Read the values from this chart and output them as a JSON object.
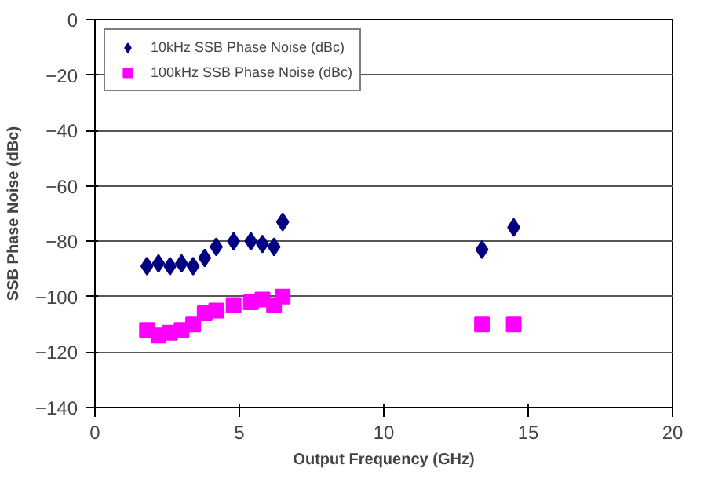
{
  "chart_data": {
    "type": "scatter",
    "xlabel": "Output Frequency (GHz)",
    "ylabel": "SSB Phase Noise (dBc)",
    "xlim": [
      0,
      20
    ],
    "xticks": [
      0,
      5,
      10,
      15,
      20
    ],
    "ylim": [
      -140,
      0
    ],
    "yticks": [
      -140,
      -120,
      -100,
      -80,
      -60,
      -40,
      -20,
      0
    ],
    "grid": "y",
    "legend": "top left",
    "series": [
      {
        "name": "10kHz SSB Phase Noise (dBc)",
        "color": "#000080",
        "marker": "diamond",
        "x": [
          1.8,
          2.2,
          2.6,
          3.0,
          3.4,
          3.8,
          4.2,
          4.8,
          5.4,
          5.8,
          6.2,
          6.5,
          13.4,
          14.5
        ],
        "values": [
          -89,
          -88,
          -89,
          -88,
          -89,
          -86,
          -82,
          -80,
          -80,
          -81,
          -82,
          -73,
          -83,
          -75
        ]
      },
      {
        "name": "100kHz SSB Phase Noise (dBc)",
        "color": "#ff00ff",
        "marker": "square",
        "x": [
          1.8,
          2.2,
          2.6,
          3.0,
          3.4,
          3.8,
          4.2,
          4.8,
          5.4,
          5.8,
          6.2,
          6.5,
          13.4,
          14.5
        ],
        "values": [
          -112,
          -114,
          -113,
          -112,
          -110,
          -106,
          -105,
          -103,
          -102,
          -101,
          -103,
          -100,
          -110,
          -110
        ]
      }
    ]
  }
}
